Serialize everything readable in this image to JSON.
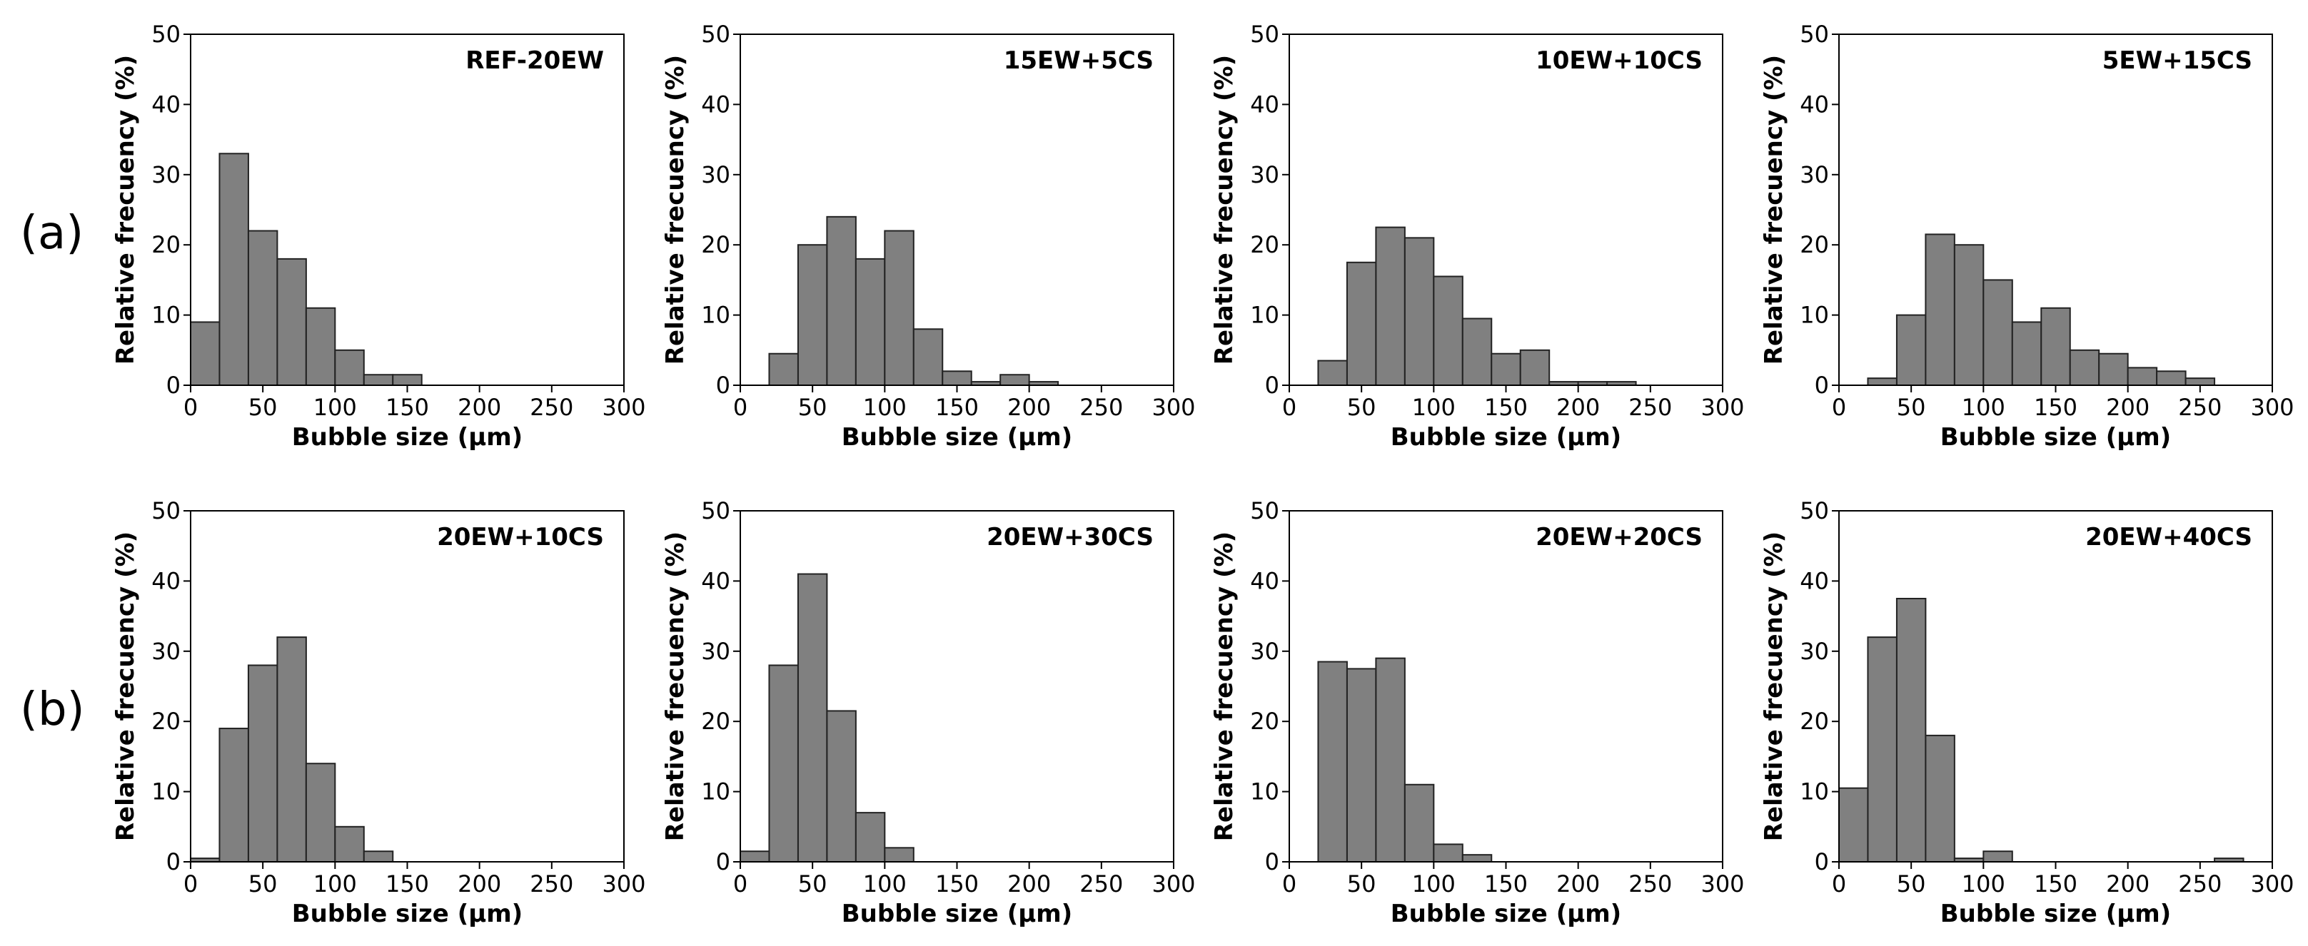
{
  "figure": {
    "row_labels": [
      "(a)",
      "(b)"
    ],
    "bar_color": "#808080",
    "bar_edge_color": "#222222"
  },
  "chart_data": [
    {
      "type": "bar",
      "title": "REF-20EW",
      "xlabel": "Bubble size (µm)",
      "ylabel": "Relative frecuency (%)",
      "xlim": [
        0,
        300
      ],
      "ylim": [
        0,
        50
      ],
      "xticks": [
        0,
        50,
        100,
        150,
        200,
        250,
        300
      ],
      "yticks": [
        0,
        10,
        20,
        30,
        40,
        50
      ],
      "bin_width": 20,
      "bin_starts": [
        0,
        20,
        40,
        60,
        80,
        100,
        120,
        140
      ],
      "values": [
        9,
        33,
        22,
        18,
        11,
        5,
        1.5,
        1.5
      ]
    },
    {
      "type": "bar",
      "title": "15EW+5CS",
      "xlabel": "Bubble size (µm)",
      "ylabel": "Relative frecuency (%)",
      "xlim": [
        0,
        300
      ],
      "ylim": [
        0,
        50
      ],
      "xticks": [
        0,
        50,
        100,
        150,
        200,
        250,
        300
      ],
      "yticks": [
        0,
        10,
        20,
        30,
        40,
        50
      ],
      "bin_width": 20,
      "bin_starts": [
        20,
        40,
        60,
        80,
        100,
        120,
        140,
        160,
        180,
        200
      ],
      "values": [
        4.5,
        20,
        24,
        18,
        22,
        8,
        2,
        0.5,
        1.5,
        0.5
      ]
    },
    {
      "type": "bar",
      "title": "10EW+10CS",
      "xlabel": "Bubble size (µm)",
      "ylabel": "Relative frecuency (%)",
      "xlim": [
        0,
        300
      ],
      "ylim": [
        0,
        50
      ],
      "xticks": [
        0,
        50,
        100,
        150,
        200,
        250,
        300
      ],
      "yticks": [
        0,
        10,
        20,
        30,
        40,
        50
      ],
      "bin_width": 20,
      "bin_starts": [
        20,
        40,
        60,
        80,
        100,
        120,
        140,
        160,
        180,
        200,
        220
      ],
      "values": [
        3.5,
        17.5,
        22.5,
        21,
        15.5,
        9.5,
        4.5,
        5,
        0.5,
        0.5,
        0.5
      ]
    },
    {
      "type": "bar",
      "title": "5EW+15CS",
      "xlabel": "Bubble size (µm)",
      "ylabel": "Relative frecuency (%)",
      "xlim": [
        0,
        300
      ],
      "ylim": [
        0,
        50
      ],
      "xticks": [
        0,
        50,
        100,
        150,
        200,
        250,
        300
      ],
      "yticks": [
        0,
        10,
        20,
        30,
        40,
        50
      ],
      "bin_width": 20,
      "bin_starts": [
        20,
        40,
        60,
        80,
        100,
        120,
        140,
        160,
        180,
        200,
        220,
        240
      ],
      "values": [
        1,
        10,
        21.5,
        20,
        15,
        9,
        11,
        5,
        4.5,
        2.5,
        2,
        1
      ]
    },
    {
      "type": "bar",
      "title": "20EW+10CS",
      "xlabel": "Bubble size (µm)",
      "ylabel": "Relative frecuency (%)",
      "xlim": [
        0,
        300
      ],
      "ylim": [
        0,
        50
      ],
      "xticks": [
        0,
        50,
        100,
        150,
        200,
        250,
        300
      ],
      "yticks": [
        0,
        10,
        20,
        30,
        40,
        50
      ],
      "bin_width": 20,
      "bin_starts": [
        0,
        20,
        40,
        60,
        80,
        100,
        120
      ],
      "values": [
        0.5,
        19,
        28,
        32,
        14,
        5,
        1.5
      ]
    },
    {
      "type": "bar",
      "title": "20EW+30CS",
      "xlabel": "Bubble size (µm)",
      "ylabel": "Relative frecuency (%)",
      "xlim": [
        0,
        300
      ],
      "ylim": [
        0,
        50
      ],
      "xticks": [
        0,
        50,
        100,
        150,
        200,
        250,
        300
      ],
      "yticks": [
        0,
        10,
        20,
        30,
        40,
        50
      ],
      "bin_width": 20,
      "bin_starts": [
        0,
        20,
        40,
        60,
        80,
        100
      ],
      "values": [
        1.5,
        28,
        41,
        21.5,
        7,
        2
      ]
    },
    {
      "type": "bar",
      "title": "20EW+20CS",
      "xlabel": "Bubble size (µm)",
      "ylabel": "Relative frecuency (%)",
      "xlim": [
        0,
        300
      ],
      "ylim": [
        0,
        50
      ],
      "xticks": [
        0,
        50,
        100,
        150,
        200,
        250,
        300
      ],
      "yticks": [
        0,
        10,
        20,
        30,
        40,
        50
      ],
      "bin_width": 20,
      "bin_starts": [
        20,
        40,
        60,
        80,
        100,
        120
      ],
      "values": [
        28.5,
        27.5,
        29,
        11,
        2.5,
        1
      ]
    },
    {
      "type": "bar",
      "title": "20EW+40CS",
      "xlabel": "Bubble size (µm)",
      "ylabel": "Relative frecuency (%)",
      "xlim": [
        0,
        300
      ],
      "ylim": [
        0,
        50
      ],
      "xticks": [
        0,
        50,
        100,
        150,
        200,
        250,
        300
      ],
      "yticks": [
        0,
        10,
        20,
        30,
        40,
        50
      ],
      "bin_width": 20,
      "bin_starts": [
        0,
        20,
        40,
        60,
        80,
        100,
        260
      ],
      "values": [
        10.5,
        32,
        37.5,
        18,
        0.5,
        1.5,
        0.5
      ]
    }
  ]
}
